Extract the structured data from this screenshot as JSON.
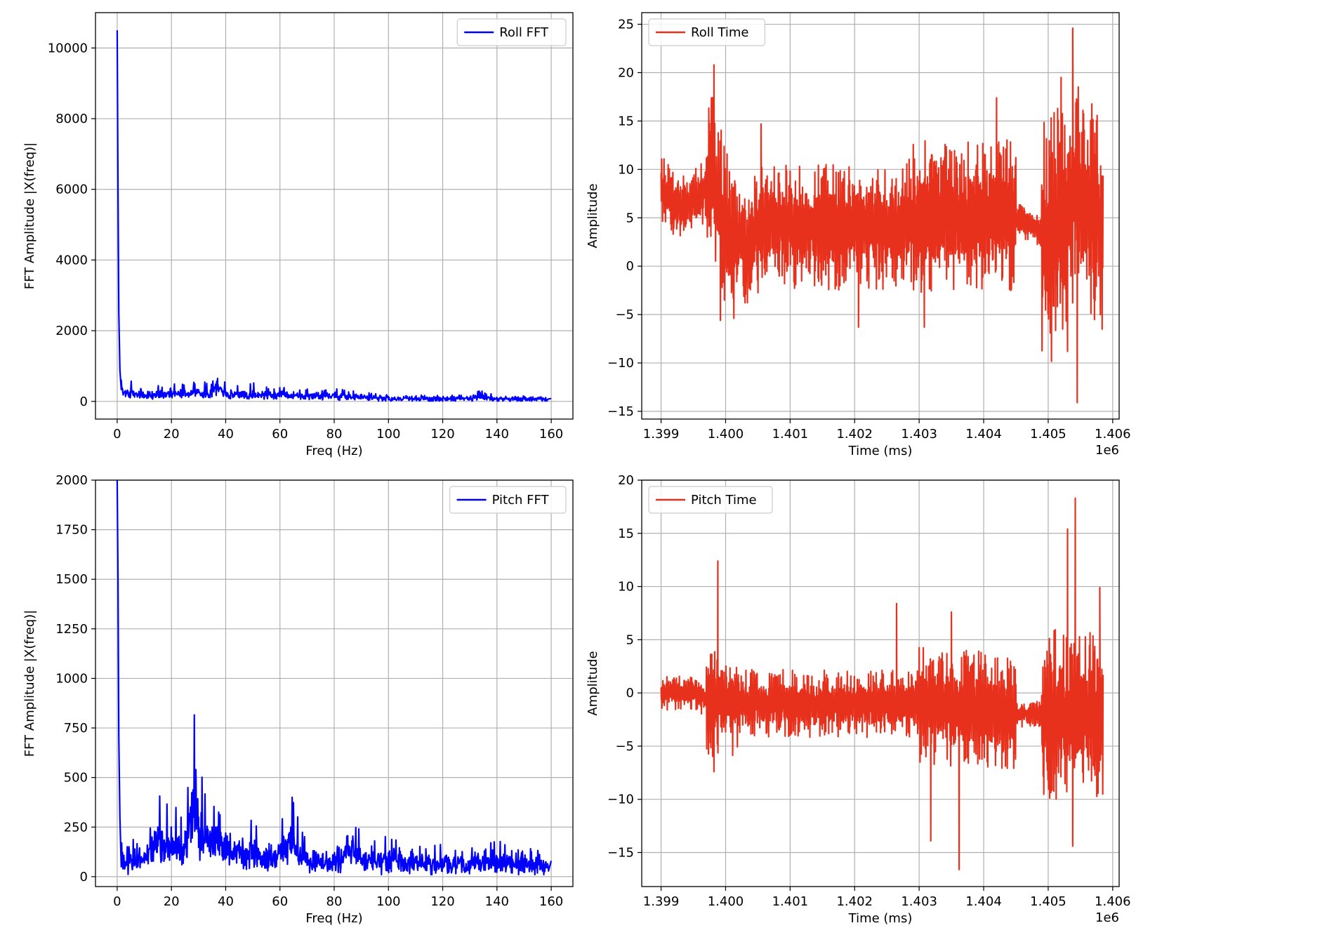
{
  "figure": {
    "background": "#ffffff"
  },
  "chart_data": [
    {
      "id": "roll-fft",
      "type": "line",
      "xlabel": "Freq (Hz)",
      "ylabel": "FFT Amplitude |X(freq)|",
      "xlim": [
        -8,
        168
      ],
      "ylim": [
        -500,
        11000
      ],
      "xticks": [
        0,
        20,
        40,
        60,
        80,
        100,
        120,
        140,
        160
      ],
      "xtick_labels": [
        "0",
        "20",
        "40",
        "60",
        "80",
        "100",
        "120",
        "140",
        "160"
      ],
      "yticks": [
        0,
        2000,
        4000,
        6000,
        8000,
        10000
      ],
      "ytick_labels": [
        "0",
        "2000",
        "4000",
        "6000",
        "8000",
        "10000"
      ],
      "offset_label": "",
      "grid": true,
      "legend": {
        "label": "Roll FFT",
        "placement": "upper-right"
      },
      "color": "#0000ff",
      "series": [
        {
          "name": "Roll FFT",
          "x": [
            0,
            0.3,
            0.6,
            1,
            1.5,
            2,
            3,
            5,
            8,
            12,
            16,
            20,
            25,
            30,
            35,
            37,
            40,
            45,
            50,
            55,
            60,
            65,
            70,
            75,
            80,
            90,
            100,
            110,
            120,
            130,
            133,
            140,
            150,
            160
          ],
          "values": [
            10500,
            6000,
            2500,
            900,
            600,
            350,
            300,
            320,
            280,
            260,
            300,
            280,
            300,
            330,
            300,
            650,
            280,
            250,
            300,
            260,
            280,
            200,
            230,
            180,
            200,
            160,
            130,
            110,
            100,
            110,
            180,
            100,
            90,
            80
          ]
        }
      ],
      "noise": {
        "x_start": 1.5,
        "x_end": 159,
        "samples": 900,
        "base": 300,
        "tail": 90,
        "spread": 170
      }
    },
    {
      "id": "roll-time",
      "type": "line",
      "xlabel": "Time (ms)",
      "ylabel": "Amplitude",
      "xlim": [
        1398.7,
        1406.1
      ],
      "ylim": [
        -15.8,
        26.2
      ],
      "xticks": [
        1399,
        1400,
        1401,
        1402,
        1403,
        1404,
        1405,
        1406
      ],
      "xtick_labels": [
        "1.399",
        "1.400",
        "1.401",
        "1.402",
        "1.403",
        "1.404",
        "1.405",
        "1.406"
      ],
      "yticks": [
        -15,
        -10,
        -5,
        0,
        5,
        10,
        15,
        20,
        25
      ],
      "ytick_labels": [
        "−15",
        "−10",
        "−5",
        "0",
        "5",
        "10",
        "15",
        "20",
        "25"
      ],
      "offset_label": "1e6",
      "grid": true,
      "legend": {
        "label": "Roll Time",
        "placement": "upper-left"
      },
      "color": "#e8311d",
      "series": [
        {
          "name": "Roll Time",
          "x": [
            1399.0,
            1399.3,
            1399.6,
            1399.8,
            1400.0,
            1400.3,
            1400.7,
            1401.0,
            1401.5,
            1402.0,
            1402.5,
            1403.0,
            1403.3,
            1403.7,
            1404.0,
            1404.3,
            1404.5,
            1404.8,
            1405.0,
            1405.3,
            1405.5,
            1405.7,
            1405.85
          ],
          "values": [
            8,
            6,
            7,
            9,
            4,
            2,
            5,
            4,
            4,
            4,
            4,
            5,
            5,
            5,
            5,
            6,
            5,
            4,
            2,
            5,
            7,
            5,
            5
          ]
        }
      ],
      "noise_segments": [
        {
          "x_start": 1399.0,
          "x_end": 1399.7,
          "spread": 3.5
        },
        {
          "x_start": 1399.7,
          "x_end": 1400.2,
          "spread": 9
        },
        {
          "x_start": 1400.2,
          "x_end": 1402.9,
          "spread": 6.5
        },
        {
          "x_start": 1402.9,
          "x_end": 1404.5,
          "spread": 8
        },
        {
          "x_start": 1404.5,
          "x_end": 1404.9,
          "spread": 2
        },
        {
          "x_start": 1404.9,
          "x_end": 1405.85,
          "spread": 13
        }
      ],
      "noise_samples": 1500,
      "extremes": [
        {
          "x": 1399.82,
          "y": 20.8
        },
        {
          "x": 1399.78,
          "y": 17.4
        },
        {
          "x": 1399.92,
          "y": -5.6
        },
        {
          "x": 1400.55,
          "y": 14.7
        },
        {
          "x": 1402.06,
          "y": -6.3
        },
        {
          "x": 1403.08,
          "y": -6.3
        },
        {
          "x": 1404.2,
          "y": 17.4
        },
        {
          "x": 1405.38,
          "y": 24.6
        },
        {
          "x": 1405.45,
          "y": -14.1
        },
        {
          "x": 1405.3,
          "y": -8.8
        },
        {
          "x": 1405.2,
          "y": 19.5
        }
      ]
    },
    {
      "id": "pitch-fft",
      "type": "line",
      "xlabel": "Freq (Hz)",
      "ylabel": "FFT Amplitude |X(freq)|",
      "xlim": [
        -8,
        168
      ],
      "ylim": [
        -50,
        2000
      ],
      "xticks": [
        0,
        20,
        40,
        60,
        80,
        100,
        120,
        140,
        160
      ],
      "xtick_labels": [
        "0",
        "20",
        "40",
        "60",
        "80",
        "100",
        "120",
        "140",
        "160"
      ],
      "yticks": [
        0,
        250,
        500,
        750,
        1000,
        1250,
        1500,
        1750,
        2000
      ],
      "ytick_labels": [
        "0",
        "250",
        "500",
        "750",
        "1000",
        "1250",
        "1500",
        "1750",
        "2000"
      ],
      "offset_label": "",
      "grid": true,
      "legend": {
        "label": "Pitch FFT",
        "placement": "upper-right"
      },
      "color": "#0000ff",
      "series": [
        {
          "name": "Pitch FFT",
          "x": [
            0,
            0.3,
            0.6,
            1,
            1.5,
            2,
            5,
            10,
            15,
            20,
            25,
            29,
            30,
            35,
            40,
            45,
            50,
            55,
            60,
            64,
            70,
            80,
            88,
            90,
            100,
            110,
            120,
            130,
            140,
            150,
            160
          ],
          "values": [
            2000,
            1500,
            700,
            300,
            120,
            100,
            110,
            120,
            250,
            200,
            230,
            540,
            300,
            250,
            220,
            180,
            160,
            130,
            140,
            250,
            110,
            100,
            200,
            90,
            120,
            100,
            90,
            80,
            100,
            90,
            80
          ]
        }
      ],
      "noise": {
        "x_start": 1.5,
        "x_end": 159,
        "samples": 1000,
        "base": 130,
        "tail": 90,
        "spread": 120
      }
    },
    {
      "id": "pitch-time",
      "type": "line",
      "xlabel": "Time (ms)",
      "ylabel": "Amplitude",
      "xlim": [
        1398.7,
        1406.1
      ],
      "ylim": [
        -18.2,
        20.0
      ],
      "xticks": [
        1399,
        1400,
        1401,
        1402,
        1403,
        1404,
        1405,
        1406
      ],
      "xtick_labels": [
        "1.399",
        "1.400",
        "1.401",
        "1.402",
        "1.403",
        "1.404",
        "1.405",
        "1.406"
      ],
      "yticks": [
        -15,
        -10,
        -5,
        0,
        5,
        10,
        15,
        20
      ],
      "ytick_labels": [
        "−15",
        "−10",
        "−5",
        "0",
        "5",
        "10",
        "15",
        "20"
      ],
      "offset_label": "1e6",
      "grid": true,
      "legend": {
        "label": "Pitch Time",
        "placement": "upper-left"
      },
      "color": "#e8311d",
      "series": [
        {
          "name": "Pitch Time",
          "x": [
            1399.0,
            1399.5,
            1399.8,
            1400.0,
            1400.5,
            1401.0,
            1401.5,
            1402.0,
            1402.5,
            1403.0,
            1403.5,
            1404.0,
            1404.5,
            1404.8,
            1405.0,
            1405.3,
            1405.5,
            1405.85
          ],
          "values": [
            0,
            0,
            -1,
            -1,
            -1,
            -1,
            -1,
            -1,
            -1,
            -1,
            -1.5,
            -1.5,
            -2,
            -2,
            -2,
            -2,
            -2,
            -2
          ]
        }
      ],
      "noise_segments": [
        {
          "x_start": 1399.0,
          "x_end": 1399.7,
          "spread": 1.6
        },
        {
          "x_start": 1399.7,
          "x_end": 1400.2,
          "spread": 5
        },
        {
          "x_start": 1400.2,
          "x_end": 1403.0,
          "spread": 3.2
        },
        {
          "x_start": 1403.0,
          "x_end": 1404.5,
          "spread": 5.5
        },
        {
          "x_start": 1404.5,
          "x_end": 1404.9,
          "spread": 1.2
        },
        {
          "x_start": 1404.9,
          "x_end": 1405.85,
          "spread": 8
        }
      ],
      "noise_samples": 1500,
      "extremes": [
        {
          "x": 1399.88,
          "y": 12.4
        },
        {
          "x": 1399.82,
          "y": -7.4
        },
        {
          "x": 1402.65,
          "y": 8.4
        },
        {
          "x": 1403.62,
          "y": -16.6
        },
        {
          "x": 1403.18,
          "y": -13.9
        },
        {
          "x": 1403.5,
          "y": 7.6
        },
        {
          "x": 1405.42,
          "y": 18.3
        },
        {
          "x": 1405.3,
          "y": 15.4
        },
        {
          "x": 1405.38,
          "y": -14.4
        },
        {
          "x": 1405.8,
          "y": 9.9
        }
      ]
    }
  ]
}
